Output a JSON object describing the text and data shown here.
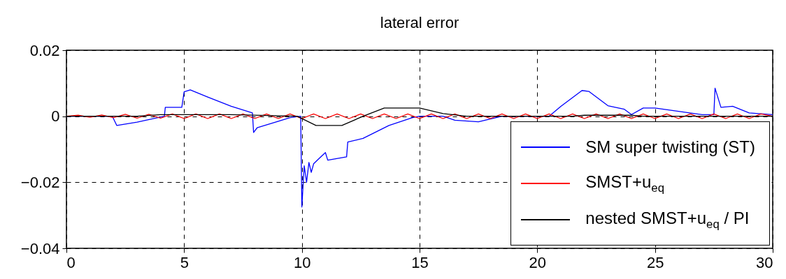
{
  "chart_data": {
    "type": "line",
    "title": "lateral error",
    "xlim": [
      0,
      30
    ],
    "ylim": [
      -0.04,
      0.02
    ],
    "xticks": [
      0,
      5,
      10,
      15,
      20,
      25,
      30
    ],
    "yticks": [
      0.02,
      0,
      -0.02,
      -0.04
    ],
    "grid": true,
    "legend": "bottom right",
    "marker": "none",
    "line_style": "solid",
    "series": [
      {
        "name": "SM super twisting (ST)",
        "color": "#0000ff",
        "x": [
          0,
          1,
          1.95,
          2.14,
          3,
          4.16,
          4.2,
          4.9,
          5,
          5.26,
          6,
          7,
          7.9,
          7.95,
          8.1,
          9,
          9.5,
          9.95,
          10,
          10.1,
          10.2,
          10.3,
          10.4,
          10.5,
          10.7,
          11,
          11.1,
          11.9,
          11.95,
          12.6,
          13.7,
          14.7,
          15,
          16,
          16.5,
          17.5,
          18.5,
          20,
          20.5,
          21,
          21.9,
          22.2,
          23,
          23.7,
          24,
          24.5,
          25,
          26,
          27,
          27.5,
          27.55,
          27.8,
          28.3,
          29,
          30
        ],
        "values": [
          0,
          0,
          0,
          -0.0028,
          -0.0018,
          0,
          0.0027,
          0.0027,
          0.0074,
          0.008,
          0.0058,
          0.003,
          0.001,
          -0.0049,
          -0.0035,
          -0.0015,
          -0.0004,
          0,
          -0.0275,
          -0.015,
          -0.02,
          -0.014,
          -0.017,
          -0.0144,
          -0.013,
          -0.011,
          -0.0133,
          -0.0123,
          -0.0078,
          -0.0067,
          -0.0028,
          -0.0004,
          0,
          0,
          -0.0012,
          -0.0017,
          0,
          0,
          0,
          0.003,
          0.0078,
          0.0075,
          0.0032,
          0.0021,
          0.0005,
          0.0025,
          0.0025,
          0.0015,
          0.0005,
          0.0005,
          0.0085,
          0.0027,
          0.003,
          0.001,
          0.0005
        ]
      },
      {
        "name": "SMST+u$_{eq}$",
        "color": "#ff0000",
        "x": [
          0,
          0.5,
          1,
          1.5,
          2,
          2.5,
          3,
          3.5,
          4,
          4.5,
          5,
          5.5,
          6,
          6.5,
          7,
          7.5,
          8,
          8.5,
          9,
          9.5,
          10,
          10.5,
          11,
          11.5,
          12,
          12.5,
          13,
          13.5,
          14,
          14.5,
          15,
          15.5,
          16,
          16.5,
          17,
          17.5,
          18,
          18.5,
          19,
          19.5,
          20,
          20.5,
          21,
          21.5,
          22,
          22.5,
          23,
          23.5,
          24,
          24.5,
          25,
          25.5,
          26,
          26.5,
          27,
          27.5,
          28,
          28.5,
          29,
          29.5,
          30
        ],
        "values": [
          0,
          0.0003,
          -0.0003,
          0.0004,
          -0.0004,
          0.0006,
          -0.0006,
          0.0006,
          -0.0006,
          0.0007,
          -0.0007,
          0.0007,
          -0.0007,
          0.0007,
          -0.0007,
          0.0007,
          -0.0007,
          0.0007,
          -0.0007,
          0.0007,
          -0.0007,
          0.0007,
          -0.0007,
          0.0007,
          -0.0007,
          0.0007,
          -0.0007,
          0.0007,
          -0.0007,
          0.0007,
          -0.0007,
          0.0007,
          -0.0007,
          0.0007,
          -0.0007,
          0.0007,
          -0.0007,
          0.0007,
          -0.0007,
          0.0007,
          -0.0007,
          0.0007,
          -0.0007,
          0.0007,
          -0.0007,
          0.0007,
          -0.0007,
          0.0007,
          -0.0007,
          0.0007,
          -0.0007,
          0.0007,
          -0.0007,
          0.0007,
          -0.0007,
          0.0007,
          -0.0007,
          0.0007,
          -0.0007,
          0.0007,
          0
        ]
      },
      {
        "name": "nested SMST+u$_{eq}$ / PI",
        "color": "#000000",
        "x": [
          0,
          3,
          4,
          7,
          9.8,
          10.6,
          11.7,
          12.6,
          13.5,
          15,
          16,
          17,
          21.5,
          22,
          24,
          24.5,
          30
        ],
        "values": [
          0,
          0,
          0.0005,
          0.0005,
          0,
          -0.0028,
          -0.0028,
          0,
          0.0025,
          0.0025,
          0.0008,
          0,
          0,
          0.0003,
          0.0003,
          0,
          0
        ]
      }
    ]
  }
}
